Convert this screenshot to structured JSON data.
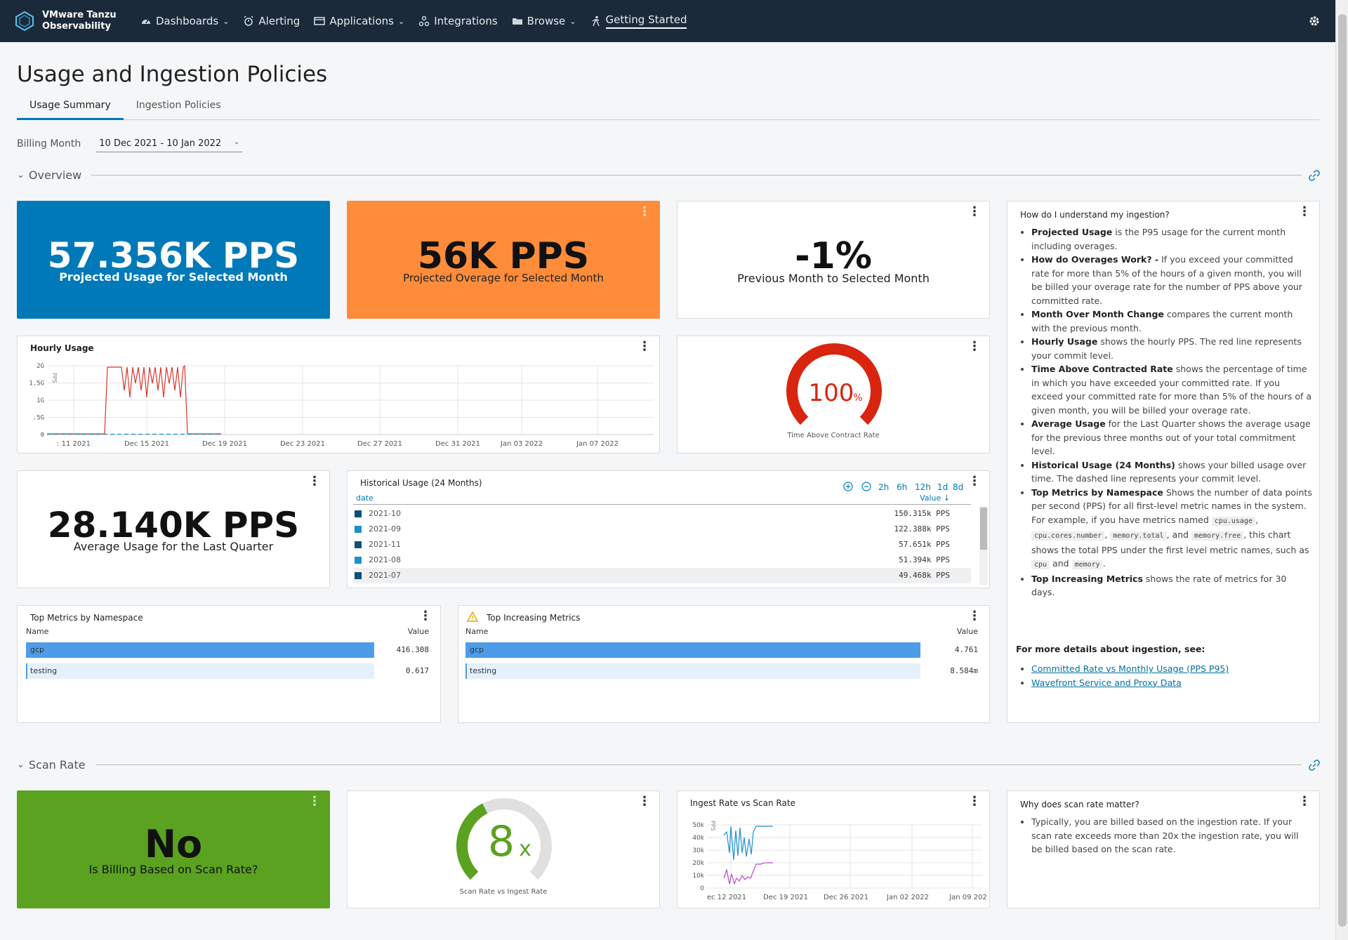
{
  "nav": {
    "brand_line1": "VMware Tanzu",
    "brand_line2": "Observability",
    "items": [
      {
        "label": "Dashboards",
        "icon": "dashboard-icon",
        "dropdown": true
      },
      {
        "label": "Alerting",
        "icon": "alarm-icon",
        "dropdown": false
      },
      {
        "label": "Applications",
        "icon": "applications-icon",
        "dropdown": true
      },
      {
        "label": "Integrations",
        "icon": "integrations-icon",
        "dropdown": false
      },
      {
        "label": "Browse",
        "icon": "folder-icon",
        "dropdown": true
      },
      {
        "label": "Getting Started",
        "icon": "walking-person-icon",
        "dropdown": false
      }
    ]
  },
  "page": {
    "title": "Usage and Ingestion Policies",
    "tabs": [
      "Usage Summary",
      "Ingestion Policies"
    ],
    "billing_label": "Billing Month",
    "billing_value": "10 Dec 2021 - 10 Jan 2022"
  },
  "sections": {
    "overview": "Overview",
    "scan_rate": "Scan Rate"
  },
  "cards": {
    "projected_usage": {
      "value": "57.356K PPS",
      "label": "Projected Usage for Selected Month",
      "color": "#0079b8"
    },
    "projected_overage": {
      "value": "56K PPS",
      "label": "Projected Overage for Selected Month",
      "color": "#ff8c3a"
    },
    "month_change": {
      "value": "-1%",
      "label": "Previous Month to Selected Month"
    },
    "average_usage": {
      "value": "28.140K PPS",
      "label": "Average Usage for the Last Quarter"
    },
    "billing_scan": {
      "value": "No",
      "label": "Is Billing Based on Scan Rate?",
      "color": "#5aa220"
    },
    "time_above": {
      "value": "100",
      "unit": "%",
      "label": "Time Above Contract Rate",
      "fraction": 1.0
    },
    "scan_vs_ingest": {
      "value": "8",
      "unit": "x",
      "label": "Scan Rate vs Ingest Rate",
      "fraction": 0.4
    }
  },
  "hourly_usage": {
    "title": "Hourly Usage",
    "y_unit": "PPS",
    "y_ticks": [
      "2G",
      "1.5G",
      "1G",
      ".5G",
      "0"
    ],
    "x_ticks": [
      ": 11 2021",
      "Dec 15 2021",
      "Dec 19 2021",
      "Dec 23 2021",
      "Dec 27 2021",
      "Dec 31 2021",
      "Jan 03 2022",
      "Jan 07 2022"
    ]
  },
  "historical": {
    "title": "Historical Usage (24 Months)",
    "col_date": "date",
    "col_value": "Value",
    "time_buttons": [
      "2h",
      "6h",
      "12h",
      "1d",
      "8d"
    ],
    "rows": [
      {
        "date": "2021-10",
        "value": "150.315k PPS"
      },
      {
        "date": "2021-09",
        "value": "122.388k PPS"
      },
      {
        "date": "2021-11",
        "value": "57.651k PPS"
      },
      {
        "date": "2021-08",
        "value": "51.394k PPS"
      },
      {
        "date": "2021-07",
        "value": "49.468k PPS"
      }
    ]
  },
  "top_metrics": {
    "title": "Top Metrics by Namespace",
    "col_name": "Name",
    "col_value": "Value",
    "rows": [
      {
        "name": "gcp",
        "value": "416.308",
        "fraction": 1.0
      },
      {
        "name": "testing",
        "value": "0.617",
        "fraction": 1.0
      }
    ]
  },
  "top_increasing": {
    "title": "Top Increasing Metrics",
    "col_name": "Name",
    "col_value": "Value",
    "rows": [
      {
        "name": "gcp",
        "value": "4.761",
        "fraction": 1.0
      },
      {
        "name": "testing",
        "value": "8.584m",
        "fraction": 1.0
      }
    ]
  },
  "help": {
    "title": "How do I understand my ingestion?",
    "items": [
      {
        "term": "Projected Usage",
        "text": " is the P95 usage for the current month including overages."
      },
      {
        "term": "How do Overages Work? -",
        "text": " If you exceed your committed rate for more than 5% of the hours of a given month, you will be billed your overage rate for the number of PPS above your committed rate."
      },
      {
        "term": "Month Over Month Change",
        "text": " compares the current month with the previous month."
      },
      {
        "term": "Hourly Usage",
        "text": " shows the hourly PPS. The red line represents your commit level."
      },
      {
        "term": "Time Above Contracted Rate",
        "text": " shows the percentage of time in which you have exceeded your committed rate. If you exceed your committed rate for more than 5% of the hours of a given month, you will be billed your overage rate."
      },
      {
        "term": "Average Usage",
        "text": " for the Last Quarter shows the average usage for the previous three months out of your total commitment level."
      },
      {
        "term": "Historical Usage (24 Months)",
        "text": " shows your billed usage over time. The dashed line represents your commit level."
      }
    ],
    "ns_term": "Top Metrics by Namespace",
    "ns_text1": " Shows the number of data points per second (PPS) for all first-level metric names in the system. For example, if you have metrics named ",
    "code1": "cpu.usage",
    "code2": "cpu.cores.number",
    "code3": "memory.total",
    "and_word": ", and",
    "code4": "memory.free",
    "ns_text2": ", this chart shows the total PPS under the first level metric names, such as",
    "code5": "cpu",
    "and2": "and",
    "code6": "memory",
    "inc_term": "Top Increasing Metrics",
    "inc_text": " shows the rate of metrics for 30 days.",
    "more_title": "For more details about ingestion, see:",
    "link1": "Committed Rate vs Monthly Usage (PPS P95)",
    "link2": "Wavefront Service and Proxy Data"
  },
  "ingest_scan": {
    "title": "Ingest Rate vs Scan Rate",
    "y_unit": "PPS",
    "y_ticks": [
      "50k",
      "40k",
      "30k",
      "20k",
      "10k",
      "0"
    ],
    "x_ticks": [
      "ec 12 2021",
      "Dec 19 2021",
      "Dec 26 2021",
      "Jan 02 2022",
      "Jan 09 202"
    ]
  },
  "scan_help": {
    "title": "Why does scan rate matter?",
    "text": "Typically, you are billed based on the ingestion rate. If your scan rate exceeds more than 20x the ingestion rate, you will be billed based on the scan rate."
  }
}
